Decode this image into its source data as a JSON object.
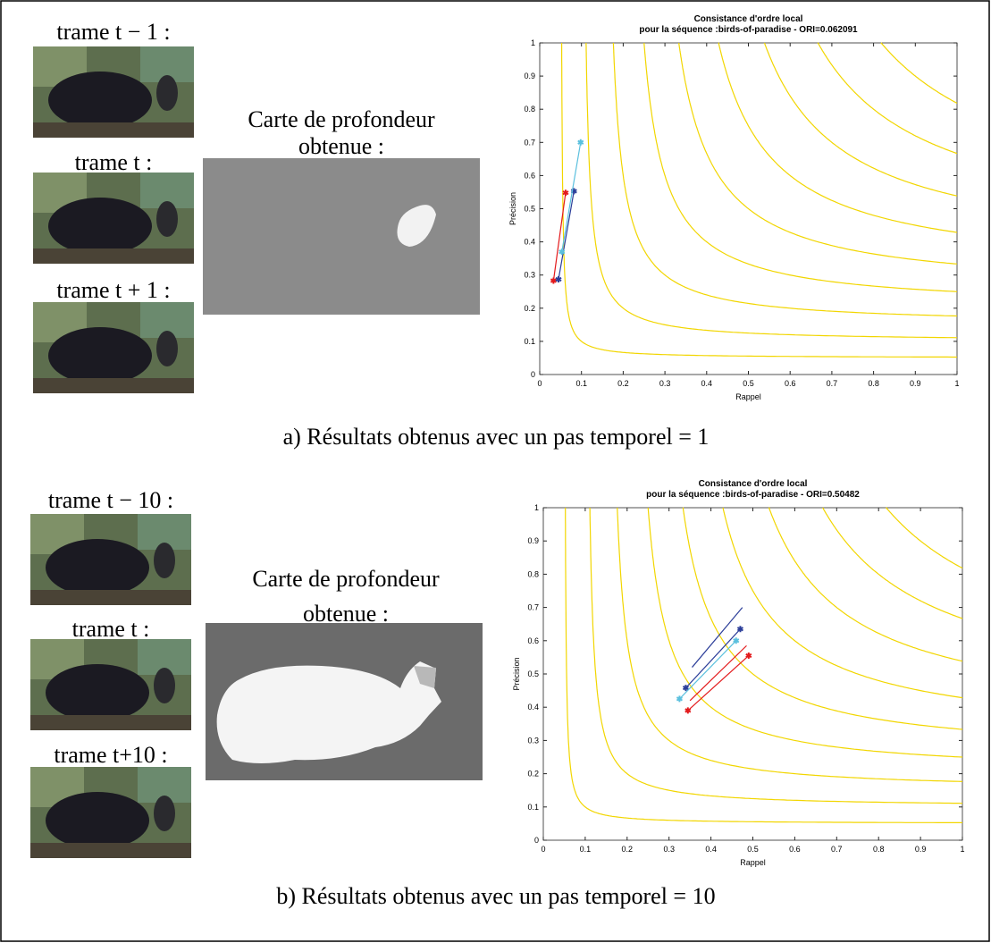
{
  "panels": [
    {
      "frames": [
        "trame t − 1 :",
        "trame t :",
        "trame t + 1 :"
      ],
      "depth_label": [
        "Carte de profondeur",
        "obtenue :"
      ],
      "caption": "a) Résultats obtenus avec un pas temporel = 1"
    },
    {
      "frames": [
        "trame t − 10 :",
        "trame t :",
        "trame t+10 :"
      ],
      "depth_label": [
        "Carte de profondeur",
        "obtenue :"
      ],
      "caption": "b) Résultats obtenus avec un pas temporel = 10"
    }
  ],
  "chart_data": [
    {
      "type": "line",
      "title": "Consistance d'ordre local",
      "subtitle": "pour la séquence :birds-of-paradise - ORI=0.062091",
      "xlabel": "Rappel",
      "ylabel": "Précision",
      "xlim": [
        0,
        1
      ],
      "ylim": [
        0,
        1
      ],
      "xticks": [
        0,
        0.1,
        0.2,
        0.3,
        0.4,
        0.5,
        0.6,
        0.7,
        0.8,
        0.9,
        1
      ],
      "yticks": [
        0,
        0.1,
        0.2,
        0.3,
        0.4,
        0.5,
        0.6,
        0.7,
        0.8,
        0.9,
        1
      ],
      "contour_levels": [
        0.1,
        0.2,
        0.3,
        0.4,
        0.5,
        0.6,
        0.7,
        0.8,
        0.9
      ],
      "contour_color": "#f2d600",
      "series": [
        {
          "color": "#e31a1c",
          "marker": true,
          "x": [
            0.033,
            0.062
          ],
          "values": [
            0.283,
            0.548
          ]
        },
        {
          "color": "#2c3e99",
          "marker": true,
          "x": [
            0.045,
            0.082
          ],
          "values": [
            0.287,
            0.553
          ]
        },
        {
          "color": "#5bc0de",
          "marker": true,
          "x": [
            0.053,
            0.098
          ],
          "values": [
            0.37,
            0.7
          ]
        }
      ]
    },
    {
      "type": "line",
      "title": "Consistance d'ordre local",
      "subtitle": "pour la séquence :birds-of-paradise - ORI=0.50482",
      "xlabel": "Rappel",
      "ylabel": "Précision",
      "xlim": [
        0,
        1
      ],
      "ylim": [
        0,
        1
      ],
      "xticks": [
        0,
        0.1,
        0.2,
        0.3,
        0.4,
        0.5,
        0.6,
        0.7,
        0.8,
        0.9,
        1
      ],
      "yticks": [
        0,
        0.1,
        0.2,
        0.3,
        0.4,
        0.5,
        0.6,
        0.7,
        0.8,
        0.9,
        1
      ],
      "contour_levels": [
        0.1,
        0.2,
        0.3,
        0.4,
        0.5,
        0.6,
        0.7,
        0.8,
        0.9
      ],
      "contour_color": "#f2d600",
      "series": [
        {
          "color": "#2c3e99",
          "marker": false,
          "x": [
            0.355,
            0.475
          ],
          "values": [
            0.52,
            0.7
          ]
        },
        {
          "color": "#2c3e99",
          "marker": true,
          "x": [
            0.34,
            0.47
          ],
          "values": [
            0.458,
            0.635
          ]
        },
        {
          "color": "#5bc0de",
          "marker": true,
          "x": [
            0.325,
            0.46
          ],
          "values": [
            0.425,
            0.6
          ]
        },
        {
          "color": "#e31a1c",
          "marker": false,
          "x": [
            0.35,
            0.485
          ],
          "values": [
            0.42,
            0.585
          ]
        },
        {
          "color": "#e31a1c",
          "marker": true,
          "x": [
            0.345,
            0.49
          ],
          "values": [
            0.39,
            0.555
          ]
        }
      ]
    }
  ]
}
